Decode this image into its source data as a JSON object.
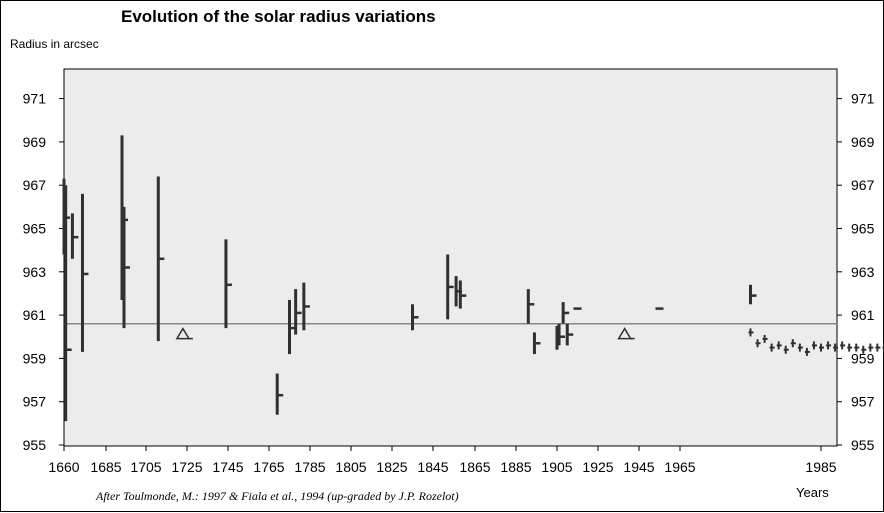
{
  "chart_data": {
    "type": "scatter",
    "title": "Evolution of the solar radius variations",
    "ylabel": "Radius in arcsec",
    "xlabel": "Years",
    "caption": "After Toulmonde, M.: 1997 & Fiala et al., 1994 (up-graded by J.P. Rozelot)",
    "xlim": [
      1660,
      1999
    ],
    "ylim": [
      955,
      972
    ],
    "x_ticks": [
      1660,
      1685,
      1705,
      1725,
      1745,
      1765,
      1785,
      1805,
      1825,
      1845,
      1865,
      1885,
      1905,
      1925,
      1945,
      1965,
      1985
    ],
    "y_ticks": [
      955,
      957,
      959,
      961,
      963,
      965,
      967,
      969,
      971
    ],
    "reference_line": 960.6,
    "grid": false,
    "series": [
      {
        "style": "error-bar",
        "points": [
          {
            "x": 1660,
            "y": 965.5,
            "low": 963.8,
            "high": 967.3
          },
          {
            "x": 1661,
            "y": 959.4,
            "low": 956.1,
            "high": 967.0
          },
          {
            "x": 1665,
            "y": 964.6,
            "low": 963.6,
            "high": 965.7
          },
          {
            "x": 1671,
            "y": 962.9,
            "low": 959.3,
            "high": 966.6
          },
          {
            "x": 1693,
            "y": 965.4,
            "low": 961.7,
            "high": 969.3
          },
          {
            "x": 1694,
            "y": 963.2,
            "low": 960.4,
            "high": 966.0
          },
          {
            "x": 1711,
            "y": 963.6,
            "low": 959.8,
            "high": 967.4
          },
          {
            "x": 1744,
            "y": 962.4,
            "low": 960.4,
            "high": 964.5
          },
          {
            "x": 1769,
            "y": 957.3,
            "low": 956.4,
            "high": 958.3
          },
          {
            "x": 1775,
            "y": 960.4,
            "low": 959.2,
            "high": 961.7
          },
          {
            "x": 1778,
            "y": 961.1,
            "low": 960.1,
            "high": 962.2
          },
          {
            "x": 1782,
            "y": 961.4,
            "low": 960.3,
            "high": 962.5
          },
          {
            "x": 1835,
            "y": 960.9,
            "low": 960.3,
            "high": 961.5
          },
          {
            "x": 1852,
            "y": 962.3,
            "low": 960.8,
            "high": 963.8
          },
          {
            "x": 1856,
            "y": 962.1,
            "low": 961.4,
            "high": 962.8
          },
          {
            "x": 1858,
            "y": 961.9,
            "low": 961.3,
            "high": 962.6
          },
          {
            "x": 1891,
            "y": 961.5,
            "low": 960.6,
            "high": 962.2
          },
          {
            "x": 1894,
            "y": 959.7,
            "low": 959.2,
            "high": 960.2
          },
          {
            "x": 1905,
            "y": 960.0,
            "low": 959.4,
            "high": 960.5
          },
          {
            "x": 1906,
            "y": 960.0,
            "low": 959.6,
            "high": 960.6
          },
          {
            "x": 1908,
            "y": 961.1,
            "low": 960.6,
            "high": 961.6
          },
          {
            "x": 1910,
            "y": 960.1,
            "low": 959.6,
            "high": 960.6
          },
          {
            "x": 1975,
            "y": 961.9,
            "low": 961.5,
            "high": 962.4
          }
        ]
      },
      {
        "style": "tick",
        "points": [
          {
            "x": 1915,
            "y": 961.3
          },
          {
            "x": 1955,
            "y": 961.3
          }
        ]
      },
      {
        "style": "triangle",
        "points": [
          {
            "x": 1723,
            "y": 960.1
          },
          {
            "x": 1938,
            "y": 960.1
          }
        ]
      },
      {
        "style": "dense",
        "points": [
          {
            "x": 1975,
            "y": 960.2
          },
          {
            "x": 1976,
            "y": 959.7
          },
          {
            "x": 1977,
            "y": 959.9
          },
          {
            "x": 1978,
            "y": 959.5
          },
          {
            "x": 1979,
            "y": 959.6
          },
          {
            "x": 1980,
            "y": 959.4
          },
          {
            "x": 1981,
            "y": 959.7
          },
          {
            "x": 1982,
            "y": 959.5
          },
          {
            "x": 1983,
            "y": 959.3
          },
          {
            "x": 1984,
            "y": 959.6
          },
          {
            "x": 1985,
            "y": 959.5
          },
          {
            "x": 1986,
            "y": 959.6
          },
          {
            "x": 1987,
            "y": 959.5
          },
          {
            "x": 1988,
            "y": 959.6
          },
          {
            "x": 1989,
            "y": 959.5
          },
          {
            "x": 1990,
            "y": 959.5
          },
          {
            "x": 1991,
            "y": 959.4
          },
          {
            "x": 1992,
            "y": 959.5
          },
          {
            "x": 1993,
            "y": 959.5
          },
          {
            "x": 1994,
            "y": 959.5
          },
          {
            "x": 1995,
            "y": 959.5
          },
          {
            "x": 1996,
            "y": 959.5
          },
          {
            "x": 1997,
            "y": 959.5
          },
          {
            "x": 1998,
            "y": 959.5
          }
        ]
      }
    ],
    "colors": {
      "plot_bg": "#ececec",
      "marks": "#303030",
      "reference": "#888888",
      "axis": "#000000"
    }
  }
}
